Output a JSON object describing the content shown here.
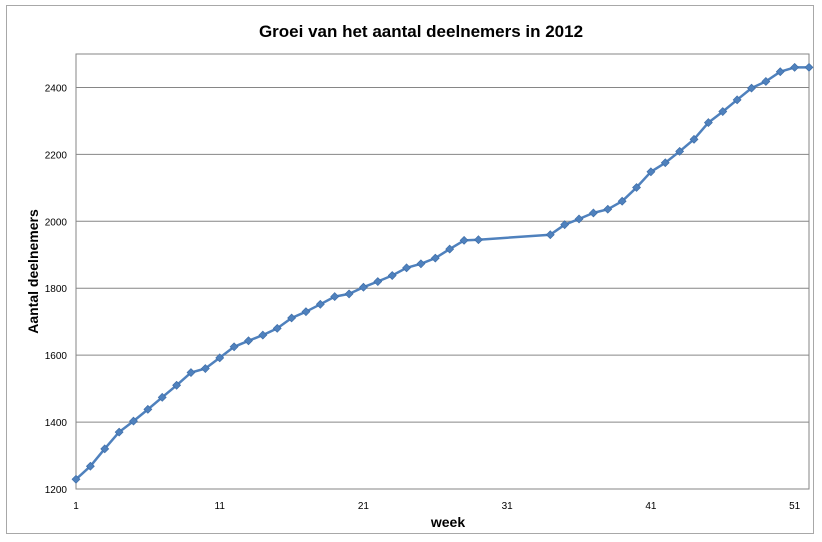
{
  "chart_data": {
    "type": "line",
    "title": "Groei van het aantal deelnemers in 2012",
    "xlabel": "week",
    "ylabel": "Aantal deelnemers",
    "xlim": [
      1,
      52
    ],
    "ylim": [
      1200,
      2500
    ],
    "x_ticks": [
      1,
      11,
      21,
      31,
      41,
      51
    ],
    "y_ticks": [
      1200,
      1400,
      1600,
      1800,
      2000,
      2200,
      2400
    ],
    "grid": "horizontal",
    "series_color": "#4f81bd",
    "series": [
      {
        "x": [
          1,
          2,
          3,
          4,
          5,
          6,
          7,
          8,
          9,
          10,
          11,
          12,
          13,
          14,
          15,
          16,
          17,
          18,
          19,
          20,
          21,
          22,
          23,
          24,
          25,
          26,
          27,
          28,
          29,
          34,
          35,
          36,
          37,
          38,
          39,
          40,
          41,
          42,
          43,
          44,
          45,
          46,
          47,
          48,
          49,
          50,
          51,
          52
        ],
        "values": [
          1229,
          1268,
          1320,
          1370,
          1403,
          1438,
          1474,
          1510,
          1548,
          1560,
          1592,
          1625,
          1643,
          1660,
          1680,
          1711,
          1730,
          1752,
          1775,
          1783,
          1803,
          1820,
          1838,
          1861,
          1873,
          1890,
          1917,
          1943,
          1945,
          1960,
          1990,
          2007,
          2025,
          2036,
          2060,
          2101,
          2148,
          2175,
          2209,
          2245,
          2295,
          2328,
          2363,
          2398,
          2418,
          2447,
          2460,
          2460
        ]
      }
    ]
  }
}
